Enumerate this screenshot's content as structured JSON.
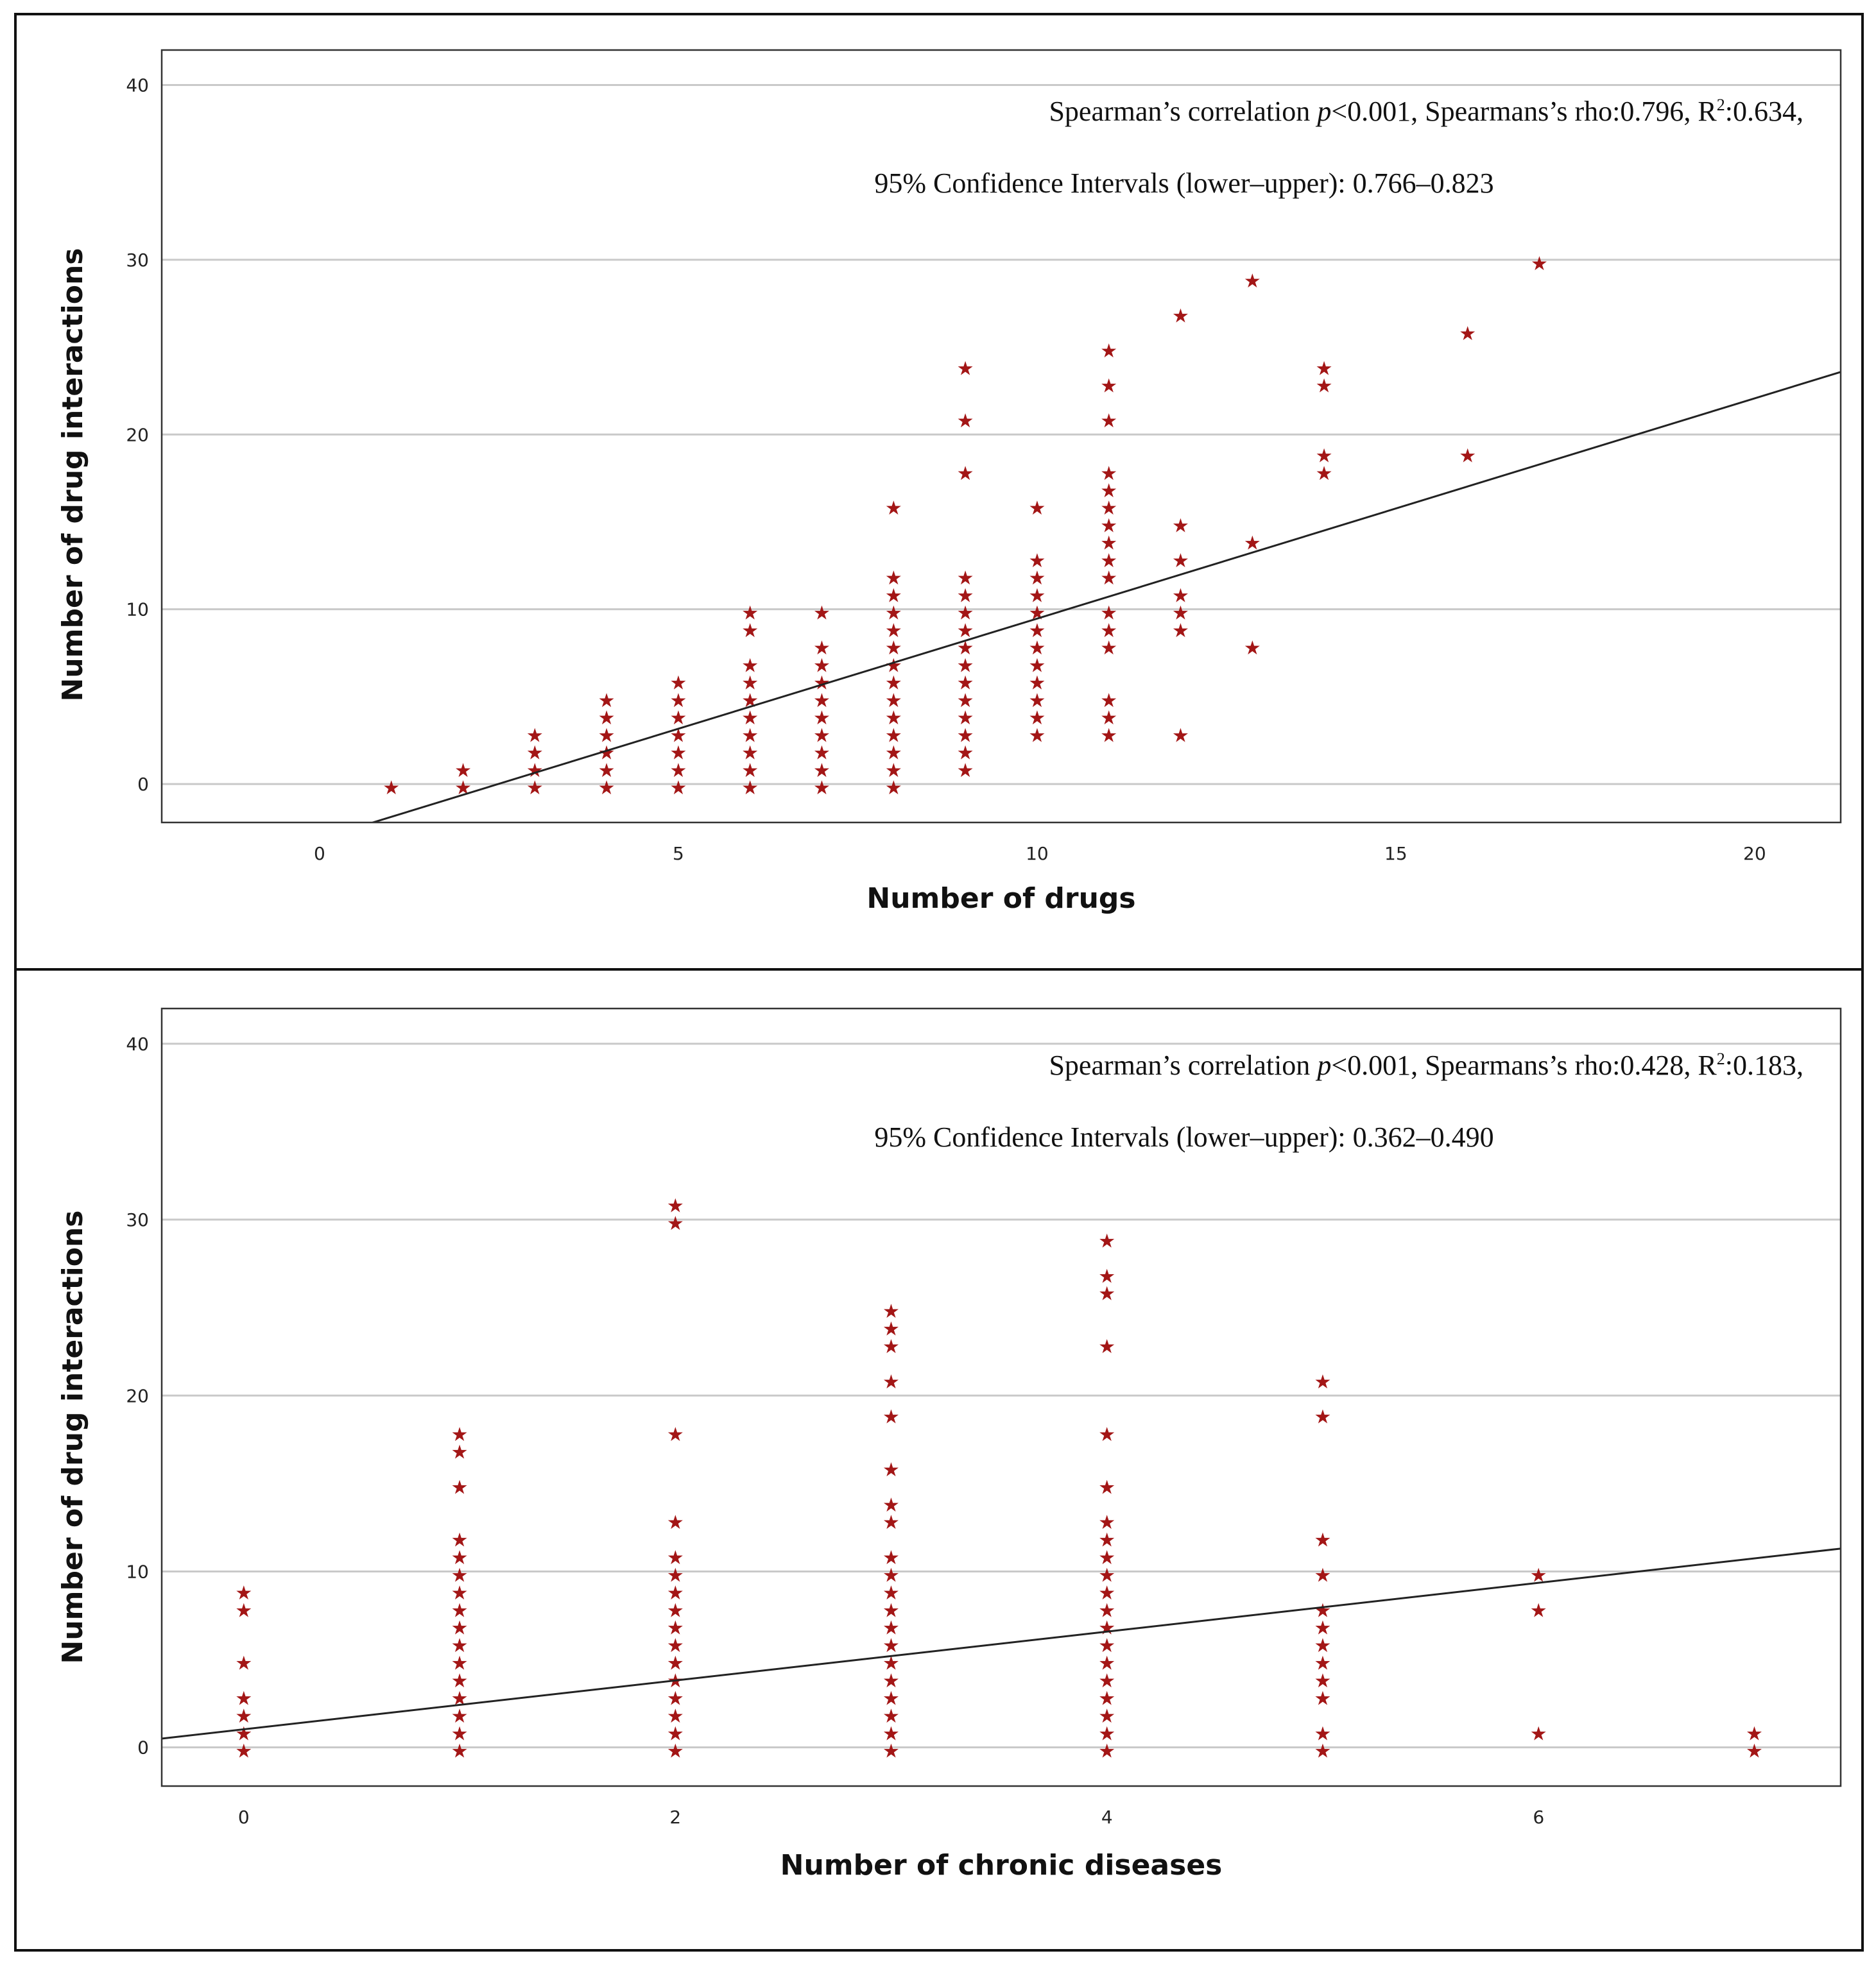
{
  "chart_data": [
    {
      "type": "scatter",
      "marker": "star",
      "marker_color": "#a31616",
      "xlabel": "Number of drugs",
      "ylabel": "Number of drug interactions",
      "xlim": [
        -2.2,
        21.2
      ],
      "ylim": [
        -2.2,
        42
      ],
      "xticks": [
        "0",
        "5",
        "10",
        "15",
        "20"
      ],
      "yticks": [
        "0",
        "10",
        "20",
        "30",
        "40"
      ],
      "annotation": {
        "line1_prefix": "Spearman’s correlation ",
        "line1_p": "p",
        "line1_mid": "<0.001, Spearmans’s rho:0.796, R",
        "line1_sup": "2",
        "line1_suffix": ":0.634,",
        "line2": "95% Confidence Intervals (lower–upper): 0.766–0.823"
      },
      "fit_line": {
        "x": [
          -2.2,
          21.2
        ],
        "y": [
          -5.91,
          23.58
        ]
      },
      "points": [
        [
          1,
          0
        ],
        [
          2,
          0
        ],
        [
          2,
          1
        ],
        [
          3,
          0
        ],
        [
          3,
          1
        ],
        [
          3,
          2
        ],
        [
          3,
          3
        ],
        [
          4,
          0
        ],
        [
          4,
          1
        ],
        [
          4,
          2
        ],
        [
          4,
          3
        ],
        [
          4,
          4
        ],
        [
          4,
          5
        ],
        [
          5,
          0
        ],
        [
          5,
          1
        ],
        [
          5,
          2
        ],
        [
          5,
          3
        ],
        [
          5,
          4
        ],
        [
          5,
          5
        ],
        [
          5,
          6
        ],
        [
          6,
          0
        ],
        [
          6,
          1
        ],
        [
          6,
          2
        ],
        [
          6,
          3
        ],
        [
          6,
          4
        ],
        [
          6,
          5
        ],
        [
          6,
          6
        ],
        [
          6,
          7
        ],
        [
          6,
          9
        ],
        [
          6,
          10
        ],
        [
          7,
          0
        ],
        [
          7,
          1
        ],
        [
          7,
          2
        ],
        [
          7,
          3
        ],
        [
          7,
          4
        ],
        [
          7,
          5
        ],
        [
          7,
          6
        ],
        [
          7,
          7
        ],
        [
          7,
          8
        ],
        [
          7,
          10
        ],
        [
          8,
          0
        ],
        [
          8,
          1
        ],
        [
          8,
          2
        ],
        [
          8,
          3
        ],
        [
          8,
          4
        ],
        [
          8,
          5
        ],
        [
          8,
          6
        ],
        [
          8,
          7
        ],
        [
          8,
          8
        ],
        [
          8,
          9
        ],
        [
          8,
          10
        ],
        [
          8,
          11
        ],
        [
          8,
          12
        ],
        [
          8,
          16
        ],
        [
          9,
          1
        ],
        [
          9,
          2
        ],
        [
          9,
          3
        ],
        [
          9,
          4
        ],
        [
          9,
          5
        ],
        [
          9,
          6
        ],
        [
          9,
          7
        ],
        [
          9,
          8
        ],
        [
          9,
          9
        ],
        [
          9,
          10
        ],
        [
          9,
          11
        ],
        [
          9,
          12
        ],
        [
          9,
          18
        ],
        [
          9,
          21
        ],
        [
          9,
          24
        ],
        [
          10,
          3
        ],
        [
          10,
          4
        ],
        [
          10,
          5
        ],
        [
          10,
          6
        ],
        [
          10,
          7
        ],
        [
          10,
          8
        ],
        [
          10,
          9
        ],
        [
          10,
          10
        ],
        [
          10,
          11
        ],
        [
          10,
          12
        ],
        [
          10,
          13
        ],
        [
          10,
          16
        ],
        [
          11,
          3
        ],
        [
          11,
          4
        ],
        [
          11,
          5
        ],
        [
          11,
          8
        ],
        [
          11,
          9
        ],
        [
          11,
          10
        ],
        [
          11,
          12
        ],
        [
          11,
          13
        ],
        [
          11,
          14
        ],
        [
          11,
          15
        ],
        [
          11,
          16
        ],
        [
          11,
          17
        ],
        [
          11,
          18
        ],
        [
          11,
          21
        ],
        [
          11,
          23
        ],
        [
          11,
          25
        ],
        [
          12,
          3
        ],
        [
          12,
          9
        ],
        [
          12,
          10
        ],
        [
          12,
          11
        ],
        [
          12,
          13
        ],
        [
          12,
          15
        ],
        [
          12,
          27
        ],
        [
          13,
          8
        ],
        [
          13,
          14
        ],
        [
          13,
          29
        ],
        [
          14,
          18
        ],
        [
          14,
          19
        ],
        [
          14,
          23
        ],
        [
          14,
          24
        ],
        [
          16,
          19
        ],
        [
          16,
          26
        ],
        [
          17,
          30
        ]
      ]
    },
    {
      "type": "scatter",
      "marker": "star",
      "marker_color": "#a31616",
      "xlabel": "Number of chronic diseases",
      "ylabel": "Number of drug interactions",
      "xlim": [
        -0.38,
        7.4
      ],
      "ylim": [
        -2.2,
        42
      ],
      "xticks": [
        "0",
        "2",
        "4",
        "6"
      ],
      "yticks": [
        "0",
        "10",
        "20",
        "30",
        "40"
      ],
      "annotation": {
        "line1_prefix": "Spearman’s correlation ",
        "line1_p": "p",
        "line1_mid": "<0.001, Spearmans’s rho:0.428, R",
        "line1_sup": "2",
        "line1_suffix": ":0.183,",
        "line2": "95% Confidence Intervals (lower–upper): 0.362–0.490"
      },
      "fit_line": {
        "x": [
          -0.38,
          7.4
        ],
        "y": [
          0.5,
          11.3
        ]
      },
      "points": [
        [
          0,
          0
        ],
        [
          0,
          1
        ],
        [
          0,
          2
        ],
        [
          0,
          3
        ],
        [
          0,
          5
        ],
        [
          0,
          8
        ],
        [
          0,
          9
        ],
        [
          1,
          0
        ],
        [
          1,
          1
        ],
        [
          1,
          2
        ],
        [
          1,
          3
        ],
        [
          1,
          4
        ],
        [
          1,
          5
        ],
        [
          1,
          6
        ],
        [
          1,
          7
        ],
        [
          1,
          8
        ],
        [
          1,
          9
        ],
        [
          1,
          10
        ],
        [
          1,
          11
        ],
        [
          1,
          12
        ],
        [
          1,
          15
        ],
        [
          1,
          17
        ],
        [
          1,
          18
        ],
        [
          2,
          0
        ],
        [
          2,
          1
        ],
        [
          2,
          2
        ],
        [
          2,
          3
        ],
        [
          2,
          4
        ],
        [
          2,
          5
        ],
        [
          2,
          6
        ],
        [
          2,
          7
        ],
        [
          2,
          8
        ],
        [
          2,
          9
        ],
        [
          2,
          10
        ],
        [
          2,
          11
        ],
        [
          2,
          13
        ],
        [
          2,
          18
        ],
        [
          2,
          30
        ],
        [
          2,
          31
        ],
        [
          3,
          0
        ],
        [
          3,
          1
        ],
        [
          3,
          2
        ],
        [
          3,
          3
        ],
        [
          3,
          4
        ],
        [
          3,
          5
        ],
        [
          3,
          6
        ],
        [
          3,
          7
        ],
        [
          3,
          8
        ],
        [
          3,
          9
        ],
        [
          3,
          10
        ],
        [
          3,
          11
        ],
        [
          3,
          13
        ],
        [
          3,
          14
        ],
        [
          3,
          16
        ],
        [
          3,
          19
        ],
        [
          3,
          21
        ],
        [
          3,
          23
        ],
        [
          3,
          24
        ],
        [
          3,
          25
        ],
        [
          4,
          0
        ],
        [
          4,
          1
        ],
        [
          4,
          2
        ],
        [
          4,
          3
        ],
        [
          4,
          4
        ],
        [
          4,
          5
        ],
        [
          4,
          6
        ],
        [
          4,
          7
        ],
        [
          4,
          8
        ],
        [
          4,
          9
        ],
        [
          4,
          10
        ],
        [
          4,
          11
        ],
        [
          4,
          12
        ],
        [
          4,
          13
        ],
        [
          4,
          15
        ],
        [
          4,
          18
        ],
        [
          4,
          23
        ],
        [
          4,
          26
        ],
        [
          4,
          27
        ],
        [
          4,
          29
        ],
        [
          5,
          0
        ],
        [
          5,
          1
        ],
        [
          5,
          3
        ],
        [
          5,
          4
        ],
        [
          5,
          5
        ],
        [
          5,
          6
        ],
        [
          5,
          7
        ],
        [
          5,
          8
        ],
        [
          5,
          10
        ],
        [
          5,
          12
        ],
        [
          5,
          19
        ],
        [
          5,
          21
        ],
        [
          6,
          1
        ],
        [
          6,
          8
        ],
        [
          6,
          10
        ],
        [
          7,
          0
        ],
        [
          7,
          1
        ]
      ]
    }
  ]
}
